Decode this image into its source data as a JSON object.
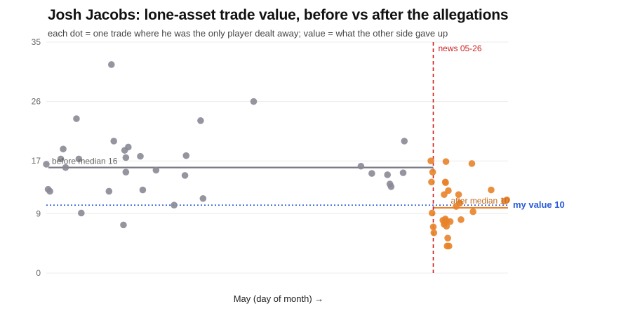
{
  "chart_data": {
    "type": "scatter",
    "title": "Josh Jacobs: lone-asset trade value, before vs after the allegations",
    "subtitle": "each dot = one trade where he was the only player dealt away; value = what the other side gave up",
    "xlabel": "May (day of month) →",
    "ylabel": "",
    "ylim": [
      0,
      35
    ],
    "yticks": [
      0,
      9,
      17,
      26,
      35
    ],
    "grid": true,
    "series": [
      {
        "name": "before",
        "color": "#8a8a96",
        "points": [
          {
            "x": 0.0,
            "y": 16.5
          },
          {
            "x": 0.15,
            "y": 12.7
          },
          {
            "x": 0.3,
            "y": 12.4
          },
          {
            "x": 1.2,
            "y": 17.3
          },
          {
            "x": 1.4,
            "y": 18.8
          },
          {
            "x": 1.6,
            "y": 16.0
          },
          {
            "x": 2.5,
            "y": 23.4
          },
          {
            "x": 2.7,
            "y": 17.3
          },
          {
            "x": 2.9,
            "y": 9.1
          },
          {
            "x": 5.2,
            "y": 12.4
          },
          {
            "x": 5.4,
            "y": 31.6
          },
          {
            "x": 5.6,
            "y": 20.0
          },
          {
            "x": 6.4,
            "y": 7.3
          },
          {
            "x": 6.5,
            "y": 18.6
          },
          {
            "x": 6.6,
            "y": 17.5
          },
          {
            "x": 6.6,
            "y": 15.3
          },
          {
            "x": 6.8,
            "y": 19.1
          },
          {
            "x": 7.8,
            "y": 17.7
          },
          {
            "x": 8.0,
            "y": 12.6
          },
          {
            "x": 9.1,
            "y": 15.6
          },
          {
            "x": 10.6,
            "y": 10.3
          },
          {
            "x": 11.5,
            "y": 14.8
          },
          {
            "x": 11.6,
            "y": 17.8
          },
          {
            "x": 12.8,
            "y": 23.1
          },
          {
            "x": 13.0,
            "y": 11.3
          },
          {
            "x": 17.2,
            "y": 26.0
          },
          {
            "x": 26.1,
            "y": 16.2
          },
          {
            "x": 27.0,
            "y": 15.1
          },
          {
            "x": 28.3,
            "y": 14.9
          },
          {
            "x": 28.5,
            "y": 13.5
          },
          {
            "x": 28.6,
            "y": 13.1
          },
          {
            "x": 29.6,
            "y": 15.2
          },
          {
            "x": 29.7,
            "y": 20.0
          }
        ]
      },
      {
        "name": "after",
        "color": "#e8832a",
        "points": [
          {
            "x": 31.9,
            "y": 17.0
          },
          {
            "x": 31.95,
            "y": 13.8
          },
          {
            "x": 32.0,
            "y": 9.1
          },
          {
            "x": 32.05,
            "y": 15.3
          },
          {
            "x": 32.1,
            "y": 7.0
          },
          {
            "x": 32.15,
            "y": 6.1
          },
          {
            "x": 32.9,
            "y": 8.0
          },
          {
            "x": 33.0,
            "y": 7.4
          },
          {
            "x": 33.0,
            "y": 11.9
          },
          {
            "x": 33.05,
            "y": 7.7
          },
          {
            "x": 33.1,
            "y": 13.8
          },
          {
            "x": 33.1,
            "y": 8.2
          },
          {
            "x": 33.12,
            "y": 13.7
          },
          {
            "x": 33.15,
            "y": 16.9
          },
          {
            "x": 33.2,
            "y": 7.9
          },
          {
            "x": 33.2,
            "y": 7.1
          },
          {
            "x": 33.25,
            "y": 4.1
          },
          {
            "x": 33.3,
            "y": 5.3
          },
          {
            "x": 33.35,
            "y": 12.5
          },
          {
            "x": 33.4,
            "y": 4.1
          },
          {
            "x": 33.5,
            "y": 7.8
          },
          {
            "x": 34.0,
            "y": 10.1
          },
          {
            "x": 34.2,
            "y": 11.9
          },
          {
            "x": 34.3,
            "y": 10.6
          },
          {
            "x": 34.4,
            "y": 8.1
          },
          {
            "x": 35.3,
            "y": 16.6
          },
          {
            "x": 35.4,
            "y": 9.3
          },
          {
            "x": 36.9,
            "y": 12.6
          },
          {
            "x": 38.0,
            "y": 10.9
          },
          {
            "x": 38.2,
            "y": 11.1
          }
        ]
      }
    ],
    "xlim": [
      0,
      38.3
    ],
    "reference_lines": {
      "before_median": {
        "label": "before median 16",
        "value": 16,
        "x_from": 0,
        "x_to": 32.1,
        "color": "#7a7a86"
      },
      "after_median": {
        "label": "after median 10",
        "value": 10,
        "x_from": 32.1,
        "x_to": 38.3,
        "color": "#e8832a"
      },
      "my_value": {
        "label": "my value 10",
        "value": 10.3,
        "color": "#2a5bd7"
      },
      "news": {
        "label": "news 05-26",
        "x": 32.1,
        "color": "#cc2222"
      }
    }
  }
}
